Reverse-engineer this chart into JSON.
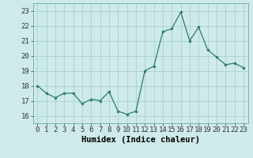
{
  "x": [
    0,
    1,
    2,
    3,
    4,
    5,
    6,
    7,
    8,
    9,
    10,
    11,
    12,
    13,
    14,
    15,
    16,
    17,
    18,
    19,
    20,
    21,
    22,
    23
  ],
  "y": [
    18.0,
    17.5,
    17.2,
    17.5,
    17.5,
    16.8,
    17.1,
    17.0,
    17.6,
    16.3,
    16.1,
    16.3,
    19.0,
    19.3,
    21.6,
    21.8,
    22.9,
    21.0,
    21.9,
    20.4,
    19.9,
    19.4,
    19.5,
    19.2
  ],
  "line_color": "#2d7a6e",
  "marker_color": "#2d7a6e",
  "bg_color": "#ceeaea",
  "grid_color": "#aad0d0",
  "xlabel": "Humidex (Indice chaleur)",
  "ylim": [
    15.5,
    23.5
  ],
  "xlim": [
    -0.5,
    23.5
  ],
  "yticks": [
    16,
    17,
    18,
    19,
    20,
    21,
    22,
    23
  ],
  "xticks": [
    0,
    1,
    2,
    3,
    4,
    5,
    6,
    7,
    8,
    9,
    10,
    11,
    12,
    13,
    14,
    15,
    16,
    17,
    18,
    19,
    20,
    21,
    22,
    23
  ],
  "xtick_labels": [
    "0",
    "1",
    "2",
    "3",
    "4",
    "5",
    "6",
    "7",
    "8",
    "9",
    "10",
    "11",
    "12",
    "13",
    "14",
    "15",
    "16",
    "17",
    "18",
    "19",
    "20",
    "21",
    "22",
    "23"
  ],
  "label_fontsize": 7.5,
  "tick_fontsize": 6.5
}
